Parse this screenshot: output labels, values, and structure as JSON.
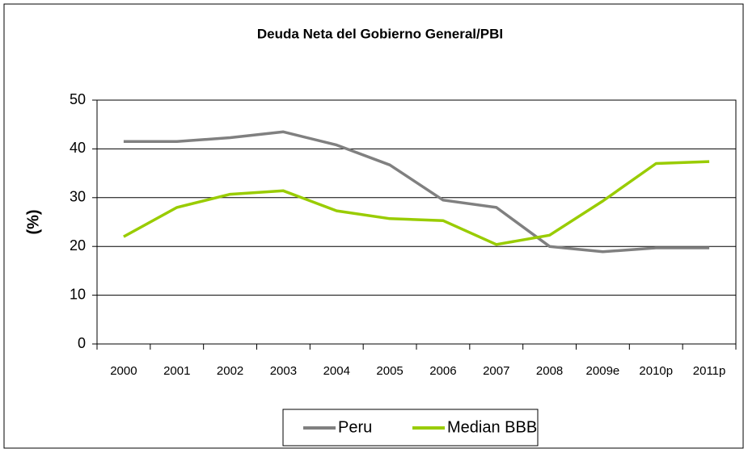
{
  "chart_data": {
    "type": "line",
    "title": "Deuda Neta del Gobierno General/PBI",
    "y_label": "(%)",
    "categories": [
      "2000",
      "2001",
      "2002",
      "2003",
      "2004",
      "2005",
      "2006",
      "2007",
      "2008",
      "2009e",
      "2010p",
      "2011p"
    ],
    "series": [
      {
        "name": "Peru",
        "color": "#808080",
        "values": [
          41.5,
          41.5,
          42.3,
          43.5,
          40.8,
          36.7,
          29.5,
          28,
          20,
          18.9,
          19.7,
          19.7
        ]
      },
      {
        "name": "Median BBB",
        "color": "#99cc00",
        "values": [
          22,
          28,
          30.7,
          31.4,
          27.3,
          25.7,
          25.3,
          20.4,
          22.3,
          29.3,
          37,
          37.4
        ]
      }
    ],
    "ylim": [
      0,
      50
    ],
    "yticks": [
      0,
      10,
      20,
      30,
      40,
      50
    ],
    "grid": true,
    "legend": "bottom"
  }
}
